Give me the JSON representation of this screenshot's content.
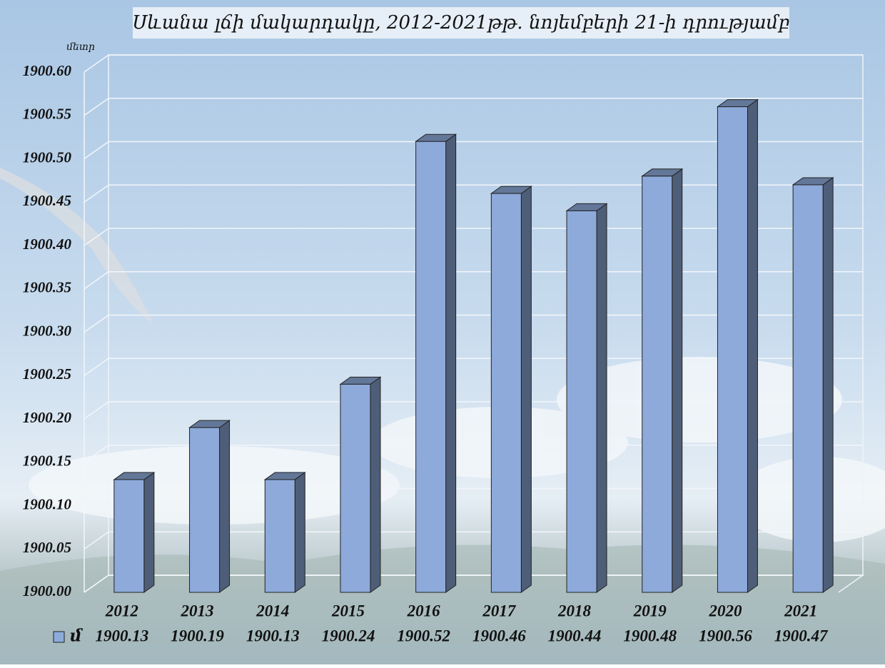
{
  "chart_data": {
    "type": "bar3d",
    "title": "Սևանա լճի մակարդակը, 2012-2021թթ․ նոյեմբերի  21-ի դրությամբ",
    "y_label": "մետր",
    "categories": [
      "2012",
      "2013",
      "2014",
      "2015",
      "2016",
      "2017",
      "2018",
      "2019",
      "2020",
      "2021"
    ],
    "series": [
      {
        "name": "մ",
        "color": "#8eaadb",
        "values": [
          1900.13,
          1900.19,
          1900.13,
          1900.24,
          1900.52,
          1900.46,
          1900.44,
          1900.48,
          1900.56,
          1900.47
        ]
      }
    ],
    "ylim": [
      1900.0,
      1900.6
    ],
    "yticks": [
      {
        "value": 1900.0,
        "label": "1900.00"
      },
      1900.05,
      {
        "value": 1900.1,
        "label": "1900.10"
      },
      1900.15,
      {
        "value": 1900.2,
        "label": "1900.20"
      },
      1900.25,
      {
        "value": 1900.3,
        "label": "1900.30"
      },
      1900.35,
      {
        "value": 1900.4,
        "label": "1900.40"
      },
      1900.45,
      {
        "value": 1900.5,
        "label": "1900.50"
      },
      1900.55,
      {
        "value": 1900.6,
        "label": "1900.60"
      }
    ],
    "grid": true,
    "data_table": true
  }
}
